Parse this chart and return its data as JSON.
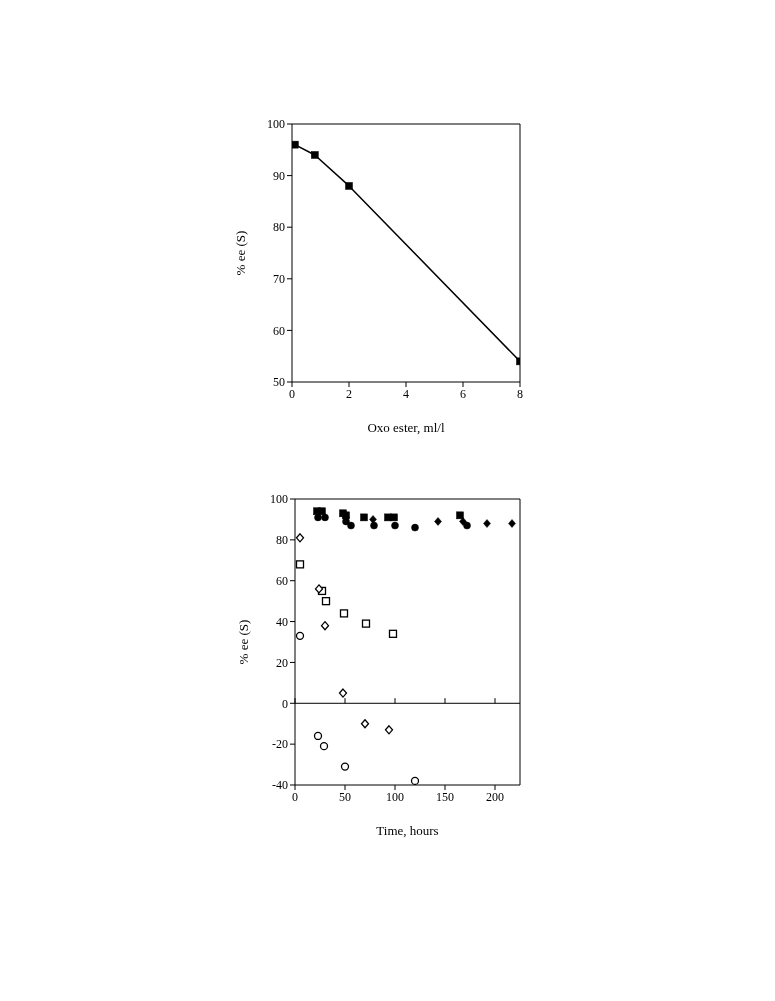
{
  "chart_data": [
    {
      "type": "line",
      "xlabel": "Oxo ester, ml/l",
      "ylabel": "% ee (S)",
      "xlim": [
        0,
        8
      ],
      "xticks": [
        0,
        2,
        4,
        6,
        8
      ],
      "ylim": [
        50,
        100
      ],
      "yticks": [
        50,
        60,
        70,
        80,
        90,
        100
      ],
      "grid": false,
      "marker": "square",
      "line_style": "solid",
      "series": [
        {
          "color": "#000000",
          "x": [
            0.1,
            0.8,
            2,
            8
          ],
          "values": [
            96,
            94,
            88,
            54
          ]
        }
      ]
    },
    {
      "type": "scatter",
      "xlabel": "Time, hours",
      "ylabel": "% ee (S)",
      "xlim": [
        0,
        225
      ],
      "xticks": [
        0,
        50,
        100,
        150,
        200
      ],
      "ylim": [
        -40,
        100
      ],
      "yticks": [
        -40,
        -20,
        0,
        20,
        40,
        60,
        80,
        100
      ],
      "grid": false,
      "ref_lines": [
        {
          "axis": "y",
          "value": 0,
          "color": "#000000"
        }
      ],
      "series": [
        {
          "color": "#000000",
          "marker": "square",
          "x": [
            22,
            27,
            48,
            51,
            69,
            93,
            99,
            165
          ],
          "values": [
            94,
            94,
            93,
            92,
            91,
            91,
            91,
            92
          ]
        },
        {
          "color": "#000000",
          "marker": "circle",
          "x": [
            23,
            30,
            51,
            56,
            79,
            100,
            120,
            172
          ],
          "values": [
            91,
            91,
            89,
            87,
            87,
            87,
            86,
            87
          ]
        },
        {
          "color": "#000000",
          "marker": "diamond",
          "x": [
            51,
            78,
            143,
            168,
            192,
            217
          ],
          "values": [
            91,
            90,
            89,
            89,
            88,
            88
          ]
        },
        {
          "color": "#000000",
          "marker": "square",
          "x": [
            5,
            27,
            31,
            49,
            71,
            98
          ],
          "values": [
            68,
            55,
            50,
            44,
            39,
            34
          ]
        },
        {
          "color": "#000000",
          "marker": "diamond",
          "x": [
            5,
            24,
            30,
            48,
            70,
            94
          ],
          "values": [
            81,
            56,
            38,
            5,
            -10,
            -13
          ]
        },
        {
          "color": "#000000",
          "marker": "circle",
          "x": [
            5,
            23,
            29,
            50,
            120
          ],
          "values": [
            33,
            -16,
            -21,
            -31,
            -38
          ]
        }
      ]
    }
  ]
}
